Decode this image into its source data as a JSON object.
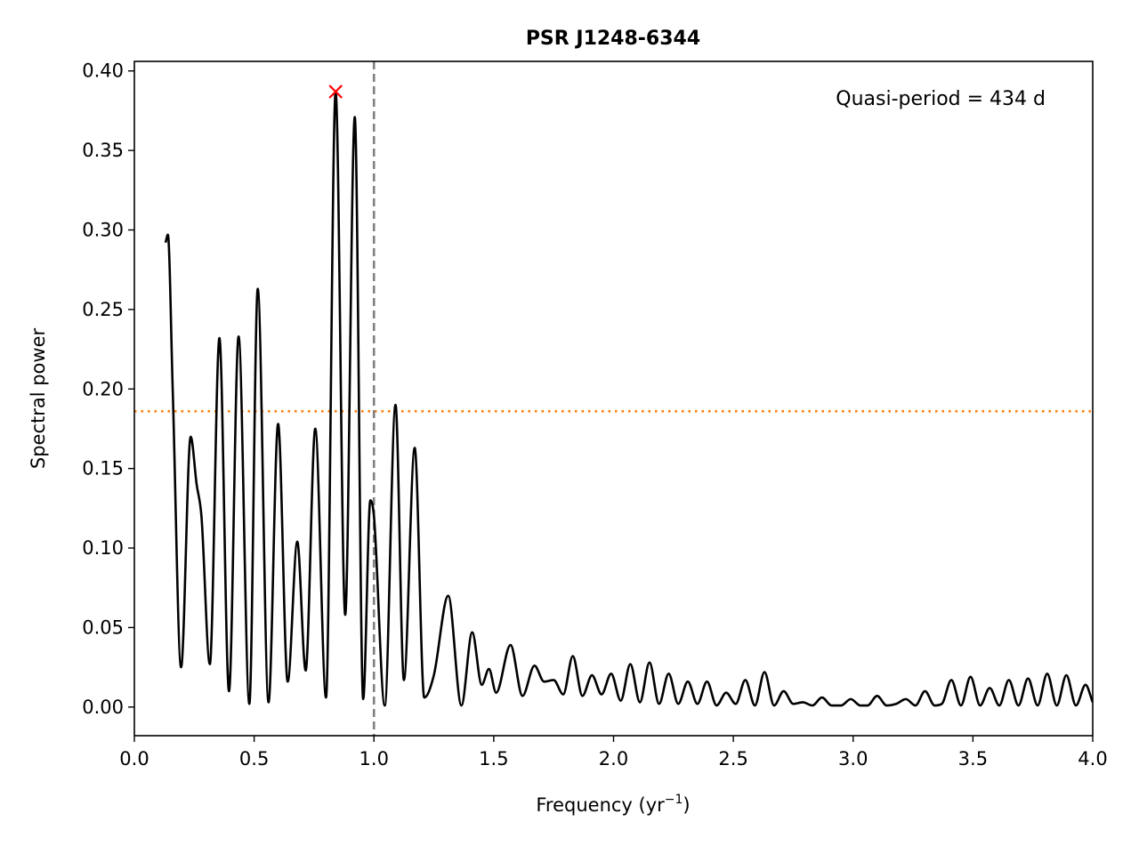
{
  "chart_data": {
    "type": "line",
    "title": "PSR J1248-6344",
    "xlabel": "Frequency (yr",
    "xlabel_sup": "−1",
    "xlabel_tail": ")",
    "ylabel": "Spectral power",
    "xlim": [
      0.0,
      4.0
    ],
    "ylim": [
      -0.018,
      0.406
    ],
    "x_ticks": [
      0.0,
      0.5,
      1.0,
      1.5,
      2.0,
      2.5,
      3.0,
      3.5,
      4.0
    ],
    "x_tick_labels": [
      "0.0",
      "0.5",
      "1.0",
      "1.5",
      "2.0",
      "2.5",
      "3.0",
      "3.5",
      "4.0"
    ],
    "y_ticks": [
      0.0,
      0.05,
      0.1,
      0.15,
      0.2,
      0.25,
      0.3,
      0.35,
      0.4
    ],
    "y_tick_labels": [
      "0.00",
      "0.05",
      "0.10",
      "0.15",
      "0.20",
      "0.25",
      "0.30",
      "0.35",
      "0.40"
    ],
    "annotation": "Quasi-period = 434 d",
    "colors": {
      "spectrum": "#000000",
      "threshold": "#ff7f0e",
      "reference": "#808080",
      "peak": "#ff0000"
    },
    "threshold_y": 0.186,
    "reference_x": 1.0,
    "peak": {
      "x": 0.84,
      "y": 0.387
    },
    "series": [
      {
        "x": [
          0.13,
          0.14,
          0.16,
          0.195,
          0.235,
          0.26,
          0.28,
          0.315,
          0.355,
          0.395,
          0.435,
          0.48,
          0.515,
          0.56,
          0.6,
          0.64,
          0.68,
          0.715,
          0.755,
          0.8,
          0.84,
          0.88,
          0.92,
          0.955,
          0.985,
          1.0,
          1.045,
          1.09,
          1.125,
          1.17,
          1.21,
          1.25,
          1.31,
          1.365,
          1.41,
          1.45,
          1.48,
          1.51,
          1.57,
          1.62,
          1.67,
          1.71,
          1.75,
          1.79,
          1.83,
          1.87,
          1.91,
          1.95,
          1.99,
          2.03,
          2.07,
          2.11,
          2.15,
          2.19,
          2.23,
          2.27,
          2.31,
          2.35,
          2.39,
          2.43,
          2.47,
          2.51,
          2.55,
          2.59,
          2.63,
          2.67,
          2.71,
          2.75,
          2.79,
          2.83,
          2.87,
          2.91,
          2.95,
          2.99,
          3.03,
          3.06,
          3.1,
          3.14,
          3.18,
          3.22,
          3.26,
          3.3,
          3.34,
          3.37,
          3.41,
          3.45,
          3.49,
          3.53,
          3.57,
          3.61,
          3.65,
          3.69,
          3.73,
          3.77,
          3.81,
          3.85,
          3.89,
          3.93,
          3.97,
          4.0
        ],
        "y": [
          0.292,
          0.297,
          0.2,
          0.025,
          0.17,
          0.14,
          0.12,
          0.027,
          0.232,
          0.01,
          0.233,
          0.002,
          0.263,
          0.003,
          0.178,
          0.016,
          0.104,
          0.023,
          0.175,
          0.006,
          0.387,
          0.058,
          0.371,
          0.005,
          0.13,
          0.12,
          0.001,
          0.19,
          0.017,
          0.163,
          0.006,
          0.02,
          0.07,
          0.001,
          0.047,
          0.014,
          0.024,
          0.009,
          0.039,
          0.007,
          0.026,
          0.016,
          0.017,
          0.008,
          0.032,
          0.007,
          0.02,
          0.008,
          0.021,
          0.004,
          0.027,
          0.003,
          0.028,
          0.002,
          0.021,
          0.002,
          0.016,
          0.002,
          0.016,
          0.001,
          0.009,
          0.002,
          0.017,
          0.001,
          0.022,
          0.001,
          0.01,
          0.002,
          0.003,
          0.001,
          0.006,
          0.001,
          0.001,
          0.005,
          0.001,
          0.001,
          0.007,
          0.001,
          0.002,
          0.005,
          0.001,
          0.01,
          0.001,
          0.002,
          0.017,
          0.001,
          0.019,
          0.001,
          0.012,
          0.001,
          0.017,
          0.001,
          0.018,
          0.001,
          0.021,
          0.001,
          0.02,
          0.001,
          0.014,
          0.003
        ]
      }
    ]
  }
}
